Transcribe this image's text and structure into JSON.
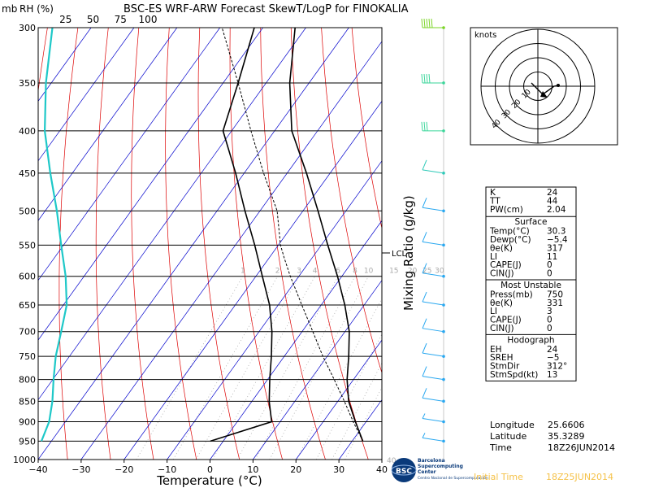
{
  "header": {
    "title": "BSC-ES WRF-ARW Forecast SkewT/LogP for FINOKALIA",
    "mb_label": "mb",
    "rh_label": "RH (%)"
  },
  "rh_ticks": [
    "25",
    "50",
    "75",
    "100"
  ],
  "colors": {
    "temperature": "#000000",
    "parcel": "#000000",
    "rh_line": "#1ec8c8",
    "isotherm": "#0000cc",
    "dry_adiabat": "#dd0000",
    "mixing_ratio": "#aaaaaa",
    "barb_top": "#7ad424",
    "barb_mid": "#3ad69a",
    "barb_low": "#2aa8f0",
    "logo": "#0a3a7a",
    "init_time": "#f5c24a"
  },
  "chart_data": {
    "type": "skew-t log-p",
    "title": "BSC-ES WRF-ARW Forecast SkewT/LogP for FINOKALIA",
    "xlabel": "Temperature (°C)",
    "ylabel_right": "Mixing Ratio (g/kg)",
    "pressure_levels": [
      "300",
      "350",
      "400",
      "450",
      "500",
      "550",
      "600",
      "650",
      "700",
      "750",
      "800",
      "850",
      "900",
      "950",
      "1000"
    ],
    "temperature_ticks": [
      "−40",
      "−30",
      "−20",
      "−10",
      "0",
      "10",
      "20",
      "30",
      "40"
    ],
    "xlim_c": [
      -40,
      40
    ],
    "plim_mb": [
      300,
      1000
    ],
    "mixing_ratio_labels": [
      "1",
      "2",
      "3",
      "4",
      "6",
      "8",
      "10",
      "15",
      "20",
      "25",
      "30"
    ],
    "theta_labels": [
      "35",
      "40"
    ],
    "lcl_label": "LCL",
    "temperature_profile": {
      "p": [
        950,
        900,
        850,
        800,
        750,
        700,
        650,
        600,
        550,
        500,
        450,
        400,
        350,
        300
      ],
      "t": [
        32.5,
        27.5,
        22.5,
        18.5,
        15.0,
        11.0,
        5.5,
        -1.0,
        -8.5,
        -16.5,
        -25.5,
        -36.0,
        -44.5,
        -52.5
      ]
    },
    "dewpoint_profile": {
      "p": [
        950,
        900,
        850,
        800,
        750,
        700,
        650,
        600,
        550,
        500,
        450,
        400,
        350,
        300
      ],
      "t": [
        -3.0,
        8.0,
        4.0,
        0.5,
        -3.0,
        -7.0,
        -12.0,
        -18.5,
        -25.5,
        -33.5,
        -42.0,
        -52.0,
        -56.5,
        -62.0
      ]
    },
    "parcel_profile": {
      "p": [
        950,
        900,
        850,
        800,
        750,
        700,
        650,
        600,
        570,
        550,
        500,
        450,
        400,
        350,
        300
      ],
      "t": [
        32.5,
        27.0,
        21.5,
        15.5,
        9.0,
        2.5,
        -4.5,
        -12.0,
        -16.5,
        -19.5,
        -26.0,
        -35.5,
        -45.5,
        -56.5,
        -69.5
      ]
    },
    "rh_profile": {
      "p": [
        950,
        900,
        850,
        800,
        750,
        700,
        650,
        600,
        550,
        500,
        450,
        400,
        350,
        300
      ],
      "rh": [
        3,
        10,
        13,
        14,
        16,
        21,
        26,
        25,
        21,
        17,
        11,
        6,
        7,
        13
      ]
    },
    "wind_barbs": [
      {
        "p": 300,
        "speed_kt": 50
      },
      {
        "p": 350,
        "speed_kt": 40
      },
      {
        "p": 400,
        "speed_kt": 30
      },
      {
        "p": 450,
        "speed_kt": 15
      },
      {
        "p": 500,
        "speed_kt": 10
      },
      {
        "p": 550,
        "speed_kt": 10
      },
      {
        "p": 600,
        "speed_kt": 10
      },
      {
        "p": 650,
        "speed_kt": 10
      },
      {
        "p": 700,
        "speed_kt": 10
      },
      {
        "p": 750,
        "speed_kt": 10
      },
      {
        "p": 800,
        "speed_kt": 10
      },
      {
        "p": 850,
        "speed_kt": 10
      },
      {
        "p": 900,
        "speed_kt": 5
      },
      {
        "p": 950,
        "speed_kt": 5
      }
    ],
    "hodograph": {
      "units_label": "knots",
      "ring_labels": [
        "10",
        "20",
        "30",
        "40"
      ],
      "ring_max_kt": 40
    }
  },
  "indices": {
    "top": [
      {
        "label": "K",
        "value": "24"
      },
      {
        "label": "TT",
        "value": "44"
      },
      {
        "label": "PW(cm)",
        "value": "2.04"
      }
    ],
    "surface": {
      "title": "Surface",
      "rows": [
        {
          "label": "Temp(°C)",
          "value": "30.3"
        },
        {
          "label": "Dewp(°C)",
          "value": "−5.4"
        },
        {
          "label": "θe(K)",
          "value": "317"
        },
        {
          "label": "LI",
          "value": "11"
        },
        {
          "label": "CAPE(J)",
          "value": "0"
        },
        {
          "label": "CIN(J)",
          "value": "0"
        }
      ]
    },
    "most_unstable": {
      "title": "Most Unstable",
      "rows": [
        {
          "label": "Press(mb)",
          "value": "750"
        },
        {
          "label": "θe(K)",
          "value": "331"
        },
        {
          "label": "LI",
          "value": "3"
        },
        {
          "label": "CAPE(J)",
          "value": "0"
        },
        {
          "label": "CIN(J)",
          "value": "0"
        }
      ]
    },
    "hodograph": {
      "title": "Hodograph",
      "rows": [
        {
          "label": "EH",
          "value": "24"
        },
        {
          "label": "SREH",
          "value": "−5"
        },
        {
          "label": "StmDir",
          "value": "312°"
        },
        {
          "label": "StmSpd(kt)",
          "value": "13"
        }
      ]
    }
  },
  "location": [
    {
      "label": "Longitude",
      "value": "25.6606"
    },
    {
      "label": "Latitude",
      "value": "35.3289"
    },
    {
      "label": "Time",
      "value": "18Z26JUN2014"
    }
  ],
  "footer": {
    "logo_text": "BSC",
    "logo_line1": "Barcelona",
    "logo_line2": "Supercomputing",
    "logo_line3": "Center",
    "logo_line4": "Centro Nacional de Supercomputación",
    "init_label": "Initial Time",
    "init_value": "18Z25JUN2014"
  }
}
